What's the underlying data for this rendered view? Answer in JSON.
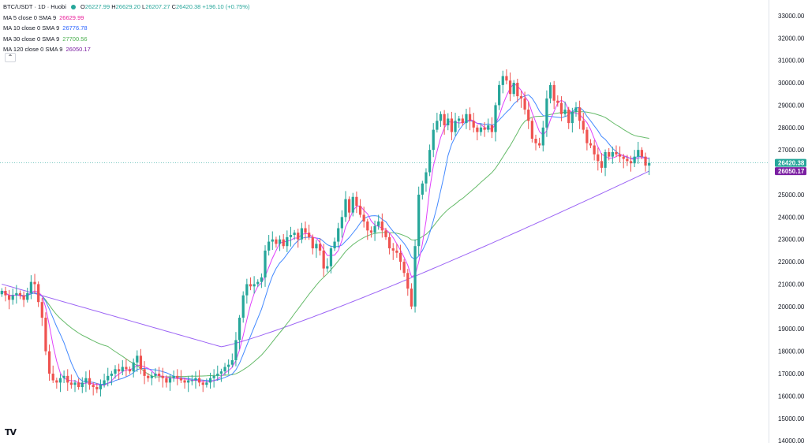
{
  "header": {
    "symbol": "BTC/USDT · 1D · Huobi",
    "status_color": "#26a69a",
    "ohlc": {
      "open_label": "O",
      "open": "26227.99",
      "high_label": "H",
      "high": "26629.20",
      "low_label": "L",
      "low": "26207.27",
      "close_label": "C",
      "close": "26420.38",
      "change": "+196.10 (+0.75%)"
    }
  },
  "indicators": [
    {
      "label": "MA 5 close 0 SMA 9",
      "value": "26629.99",
      "color": "#e91e9a"
    },
    {
      "label": "MA 10 close 0 SMA 9",
      "value": "26776.78",
      "color": "#2962ff"
    },
    {
      "label": "MA 30 close 0 SMA 9",
      "value": "27700.56",
      "color": "#4caf50"
    },
    {
      "label": "MA 120 close 0 SMA 9",
      "value": "26050.17",
      "color": "#7b1fa2"
    }
  ],
  "collapse_icon": "chevron-up-icon",
  "logo_text": "TV",
  "chart_data": {
    "type": "candlestick",
    "colors": {
      "up": "#26a69a",
      "down": "#ef5350",
      "ma5": "#e040fb",
      "ma10": "#448aff",
      "ma30": "#66bb6a",
      "ma120": "#9c64f5"
    },
    "ylim": [
      13900,
      33700
    ],
    "y_ticks": [
      "14000.00",
      "15000.00",
      "16000.00",
      "17000.00",
      "18000.00",
      "19000.00",
      "20000.00",
      "21000.00",
      "22000.00",
      "23000.00",
      "24000.00",
      "25000.00",
      "26000.00",
      "27000.00",
      "28000.00",
      "29000.00",
      "30000.00",
      "31000.00",
      "32000.00",
      "33000.00"
    ],
    "last_price": {
      "value": 26420.38,
      "label": "26420.38",
      "color": "#26a69a"
    },
    "ma120_last": {
      "value": 26050.17,
      "label": "26050.17",
      "color": "#7b1fa2"
    },
    "closes": [
      20700,
      20500,
      20300,
      20500,
      20600,
      20500,
      20300,
      20600,
      21100,
      21000,
      20200,
      19500,
      18000,
      17000,
      16700,
      16600,
      16800,
      16900,
      16600,
      16500,
      16600,
      16400,
      16600,
      16800,
      16500,
      16400,
      16300,
      16500,
      16700,
      16900,
      17000,
      17200,
      17100,
      17300,
      17200,
      17100,
      17500,
      17800,
      17200,
      16900,
      16800,
      16900,
      17000,
      16900,
      16800,
      16600,
      16800,
      16900,
      16800,
      16700,
      16600,
      16700,
      16700,
      16800,
      16600,
      16500,
      16600,
      16800,
      16900,
      17000,
      17100,
      17300,
      17400,
      17600,
      18500,
      19500,
      20500,
      21000,
      20900,
      21000,
      21100,
      21300,
      22500,
      22900,
      23000,
      22800,
      23000,
      22700,
      23100,
      23200,
      23300,
      23000,
      23500,
      23300,
      23100,
      22600,
      22800,
      22500,
      21700,
      21800,
      22600,
      22900,
      23500,
      24000,
      24800,
      24200,
      24900,
      24500,
      24100,
      23800,
      23400,
      23300,
      23600,
      23800,
      23400,
      23100,
      22600,
      22500,
      22400,
      22000,
      21500,
      20800,
      20000,
      22700,
      25000,
      25500,
      26000,
      27000,
      27900,
      28300,
      28600,
      28100,
      28400,
      27800,
      28300,
      28400,
      28200,
      28600,
      28300,
      28000,
      27800,
      28000,
      27900,
      28100,
      27800,
      29000,
      29900,
      30300,
      30100,
      29500,
      30000,
      29400,
      29300,
      28800,
      28300,
      27500,
      27300,
      27200,
      28000,
      29300,
      29900,
      29200,
      29100,
      28600,
      28800,
      28200,
      28700,
      28900,
      28300,
      27900,
      27300,
      27200,
      26800,
      26500,
      26200,
      26900,
      26700,
      26900,
      26800,
      26700,
      26600,
      26500,
      26400,
      26700,
      27000,
      26700,
      26300,
      26420
    ]
  }
}
